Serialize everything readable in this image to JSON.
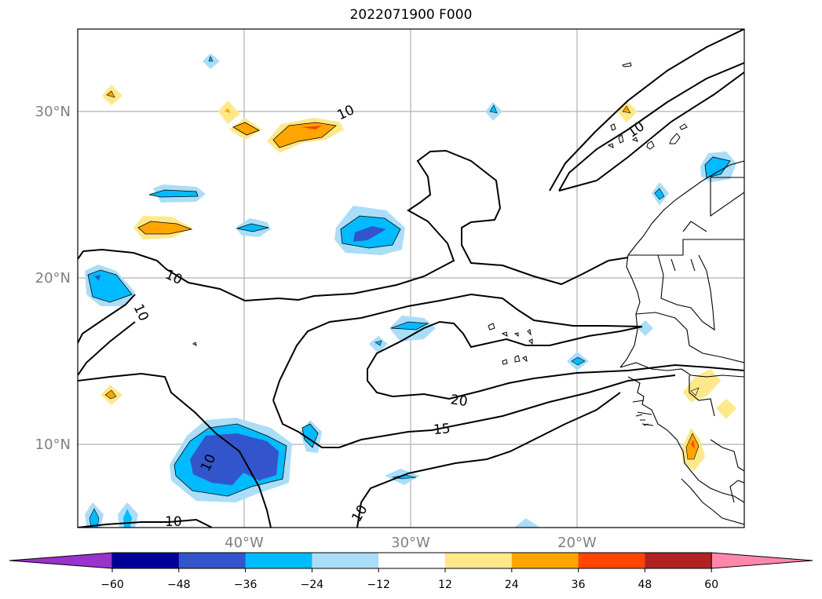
{
  "title": "2022071900 F000",
  "map": {
    "lat_labels": [
      "30°N",
      "20°N",
      "10°N"
    ],
    "lon_labels": [
      "40°W",
      "30°W",
      "20°W"
    ],
    "extent": {
      "lon": [
        -50,
        -10
      ],
      "lat": [
        5,
        35
      ]
    },
    "gridlines": true
  },
  "contour_labels": [
    "10",
    "10",
    "10",
    "10",
    "10",
    "10",
    "20",
    "15",
    "10"
  ],
  "colorbar": {
    "colors": [
      "#9933cc",
      "#000099",
      "#3355cc",
      "#00bbff",
      "#aaddf8",
      "#ffffff",
      "#ffe88a",
      "#ffa500",
      "#ff4500",
      "#b22222",
      "#ff88aa"
    ],
    "ticks": [
      "−60",
      "−48",
      "−36",
      "−24",
      "−12",
      "12",
      "24",
      "36",
      "48",
      "60"
    ]
  }
}
